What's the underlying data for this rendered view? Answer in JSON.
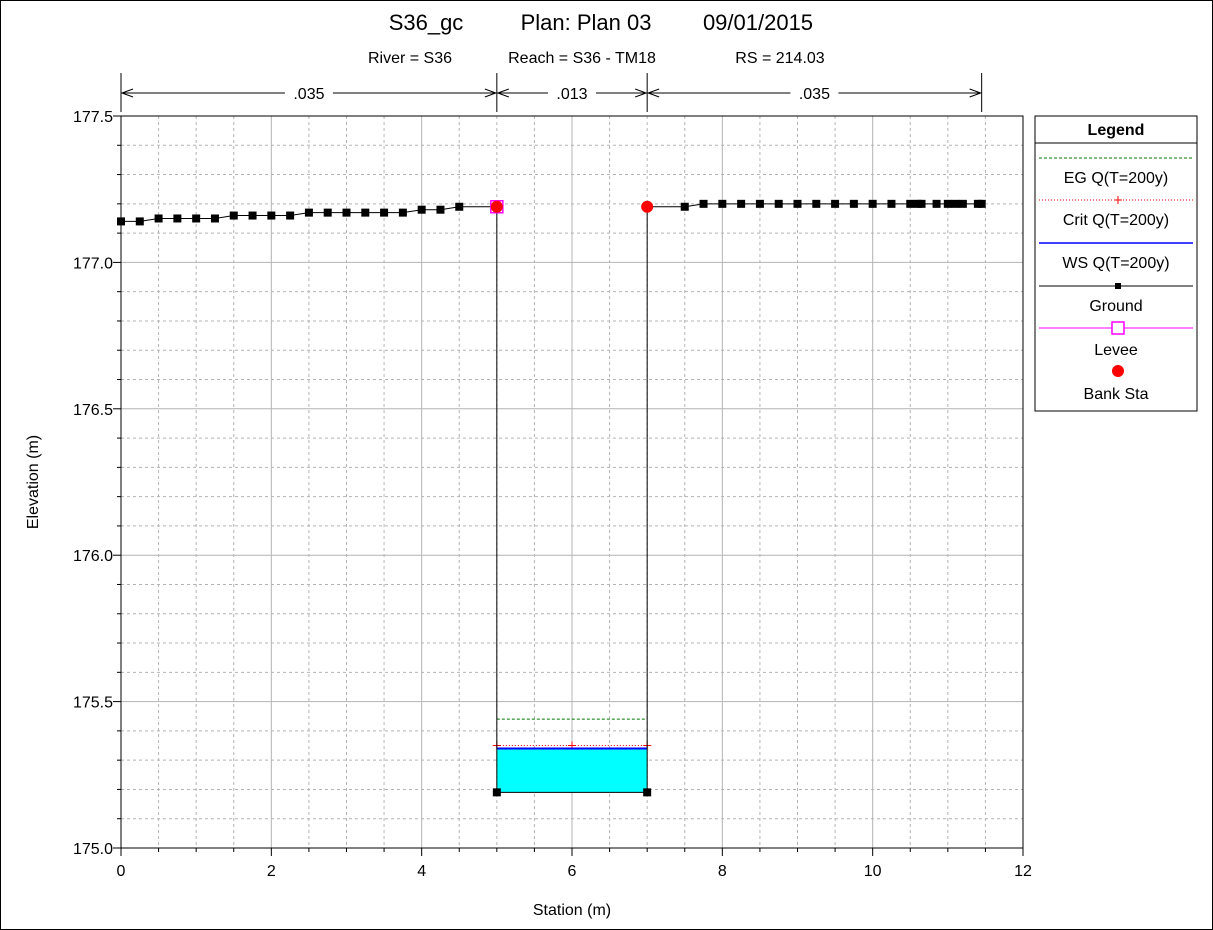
{
  "header": {
    "title_line1_a": "S36_gc",
    "title_line1_b": "Plan: Plan 03",
    "title_line1_c": "09/01/2015",
    "subtitle_a": "River = S36",
    "subtitle_b": "Reach = S36 - TM18",
    "subtitle_c": "RS = 214.03"
  },
  "chart_data": {
    "type": "line",
    "xlabel": "Station (m)",
    "ylabel": "Elevation (m)",
    "xlim": [
      0,
      12
    ],
    "ylim": [
      175.0,
      177.5
    ],
    "x_ticks": [
      "0",
      "2",
      "4",
      "6",
      "8",
      "10",
      "12"
    ],
    "y_ticks": [
      "175.0",
      "175.5",
      "176.0",
      "176.5",
      "177.0",
      "177.5"
    ],
    "grid": true,
    "mannings": [
      {
        "label": ".035",
        "from": 0,
        "to": 5
      },
      {
        "label": ".013",
        "from": 5,
        "to": 7
      },
      {
        "label": ".035",
        "from": 7,
        "to": 11.45
      }
    ],
    "ground": {
      "x": [
        0,
        0.25,
        0.5,
        0.75,
        1.0,
        1.25,
        1.5,
        1.75,
        2.0,
        2.25,
        2.5,
        2.75,
        3.0,
        3.25,
        3.5,
        3.75,
        4.0,
        4.25,
        4.5,
        5.0,
        5.0,
        7.0,
        7.0,
        7.5,
        7.75,
        8.0,
        8.25,
        8.5,
        8.75,
        9.0,
        9.25,
        9.5,
        9.75,
        10.0,
        10.25,
        10.5,
        10.6,
        10.65,
        10.85,
        11.0,
        11.1,
        11.2,
        11.4,
        11.45
      ],
      "y": [
        177.14,
        177.14,
        177.15,
        177.15,
        177.15,
        177.15,
        177.16,
        177.16,
        177.16,
        177.16,
        177.17,
        177.17,
        177.17,
        177.17,
        177.17,
        177.17,
        177.18,
        177.18,
        177.19,
        177.19,
        175.19,
        175.19,
        177.19,
        177.19,
        177.2,
        177.2,
        177.2,
        177.2,
        177.2,
        177.2,
        177.2,
        177.2,
        177.2,
        177.2,
        177.2,
        177.2,
        177.2,
        177.2,
        177.2,
        177.2,
        177.2,
        177.2,
        177.2,
        177.2
      ]
    },
    "eg_elevation": 175.44,
    "crit_elevation": 175.35,
    "ws_elevation": 175.34,
    "channel_left": 5.0,
    "channel_right": 7.0,
    "levee": {
      "x": 5.0,
      "y": 177.19
    },
    "bank_stations": [
      {
        "x": 5.0,
        "y": 177.19
      },
      {
        "x": 7.0,
        "y": 177.19
      }
    ],
    "colors": {
      "water": "#00ffff",
      "eg": "#007700",
      "crit": "#ff0000",
      "ws": "#0000ff",
      "ground": "#000000",
      "levee": "#ff00ff",
      "bank": "#ff0000",
      "grid": "#b4b4b4"
    },
    "legend": {
      "title": "Legend",
      "placement": "right",
      "items": [
        {
          "label": "EG Q(T=200y)",
          "symbol": "eg"
        },
        {
          "label": "Crit Q(T=200y)",
          "symbol": "crit"
        },
        {
          "label": "WS Q(T=200y)",
          "symbol": "ws"
        },
        {
          "label": "Ground",
          "symbol": "ground"
        },
        {
          "label": "Levee",
          "symbol": "levee"
        },
        {
          "label": "Bank Sta",
          "symbol": "bank"
        }
      ]
    }
  }
}
